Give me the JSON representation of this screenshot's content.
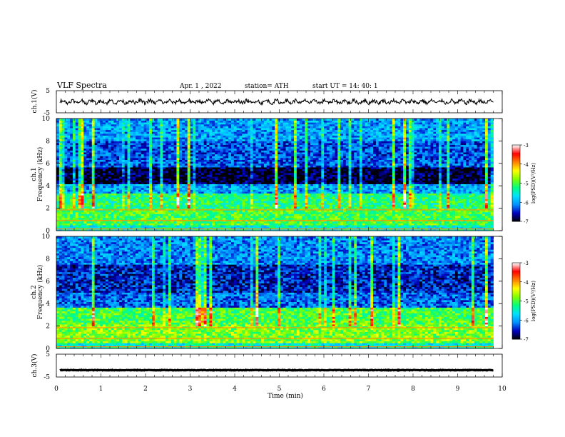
{
  "header": {
    "title": "VLF  Spectra",
    "date": "Apr. 1  , 2022",
    "station": "station= ATH",
    "start": "start  UT  =    14: 40: 1"
  },
  "chart_data": [
    {
      "type": "line",
      "panel": "ch1-waveform",
      "ylabel": "ch.1(V)",
      "ylim": [
        -5,
        5
      ],
      "y_ticks": [
        "5",
        "-5"
      ],
      "baseline": 0,
      "line_color": "#000000"
    },
    {
      "type": "heatmap",
      "panel": "ch1-spectrogram",
      "ylabel": "ch.1\nFrequency  (kHz)",
      "ylim": [
        0,
        10
      ],
      "y_ticks": [
        "0",
        "2",
        "4",
        "6",
        "8",
        "10"
      ],
      "colorbar": {
        "label": "log(PSD)(V²/Hz)",
        "range": [
          -7,
          -3
        ],
        "ticks": [
          "-3",
          "-4",
          "-5",
          "-6",
          "-7"
        ],
        "colors": [
          "#000000",
          "#0000c0",
          "#0090ff",
          "#00e0ff",
          "#00ff80",
          "#80ff00",
          "#ffff00",
          "#ff8000",
          "#ff0000",
          "#ffffff"
        ]
      },
      "bands_kHz": [
        {
          "from": 0.0,
          "to": 0.5,
          "level": -5.5
        },
        {
          "from": 0.5,
          "to": 2.0,
          "level": -5.0
        },
        {
          "from": 2.0,
          "to": 3.4,
          "level": -5.2
        },
        {
          "from": 3.4,
          "to": 4.2,
          "level": -6.0
        },
        {
          "from": 4.2,
          "to": 5.6,
          "level": -6.9
        },
        {
          "from": 5.6,
          "to": 8.0,
          "level": -6.3
        },
        {
          "from": 8.0,
          "to": 10.0,
          "level": -6.0
        }
      ]
    },
    {
      "type": "heatmap",
      "panel": "ch2-spectrogram",
      "ylabel": "ch.2\nFrequency  (kHz)",
      "ylim": [
        0,
        10
      ],
      "y_ticks": [
        "0",
        "2",
        "4",
        "6",
        "8",
        "10"
      ],
      "colorbar": {
        "label": "log(PSD)(V²/Hz)",
        "range": [
          -7,
          -3
        ],
        "ticks": [
          "-3",
          "-4",
          "-5",
          "-6",
          "-7"
        ]
      },
      "bands_kHz": [
        {
          "from": 0.0,
          "to": 0.5,
          "level": -5.5
        },
        {
          "from": 0.5,
          "to": 2.2,
          "level": -4.8
        },
        {
          "from": 2.2,
          "to": 3.6,
          "level": -5.0
        },
        {
          "from": 3.6,
          "to": 5.0,
          "level": -6.2
        },
        {
          "from": 5.0,
          "to": 7.5,
          "level": -6.5
        },
        {
          "from": 7.5,
          "to": 10.0,
          "level": -6.1
        }
      ]
    },
    {
      "type": "line",
      "panel": "ch3-waveform",
      "ylabel": "ch.3(V)",
      "ylim": [
        -5,
        5
      ],
      "y_ticks": [
        "5",
        "-5"
      ],
      "baseline": -2,
      "line_color": "#000000"
    }
  ],
  "x_axis": {
    "label": "Time  (min)",
    "range": [
      0,
      10
    ],
    "data_end": 9.8,
    "ticks": [
      "0",
      "1",
      "2",
      "3",
      "4",
      "5",
      "6",
      "7",
      "8",
      "9",
      "10"
    ]
  }
}
